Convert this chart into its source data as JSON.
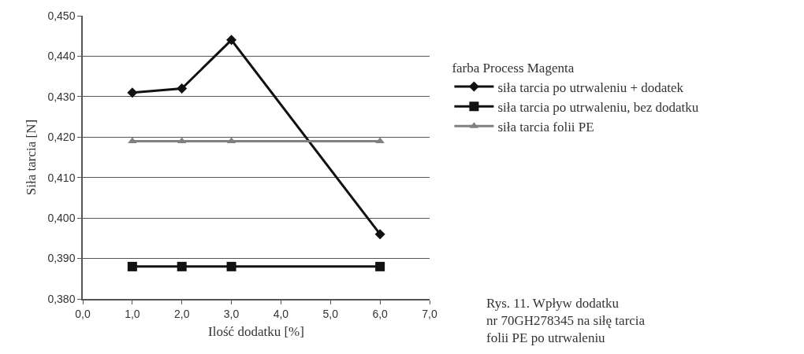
{
  "chart_data": {
    "type": "line",
    "xlabel": "Ilość dodatku [%]",
    "ylabel": "Siła tarcia [N]",
    "legend_title": "farba Process Magenta",
    "x": [
      1,
      2,
      3,
      6
    ],
    "series": [
      {
        "name": "siła tarcia po utrwaleniu + dodatek",
        "color": "#111111",
        "marker": "diamond",
        "values": [
          0.431,
          0.432,
          0.444,
          0.396
        ]
      },
      {
        "name": "siła tarcia po utrwaleniu, bez dodatku",
        "color": "#111111",
        "marker": "square",
        "values": [
          0.388,
          0.388,
          0.388,
          0.388
        ]
      },
      {
        "name": "siła tarcia folii PE",
        "color": "#808080",
        "marker": "triangle",
        "values": [
          0.419,
          0.419,
          0.419,
          0.419
        ]
      }
    ],
    "xlim": [
      0,
      7
    ],
    "xticks": [
      {
        "value": 0,
        "label": "0,0"
      },
      {
        "value": 1,
        "label": "1,0"
      },
      {
        "value": 2,
        "label": "2,0"
      },
      {
        "value": 3,
        "label": "3,0"
      },
      {
        "value": 4,
        "label": "4,0"
      },
      {
        "value": 5,
        "label": "5,0"
      },
      {
        "value": 6,
        "label": "6,0"
      },
      {
        "value": 7,
        "label": "7,0"
      }
    ],
    "ylim": [
      0.38,
      0.45
    ],
    "yticks": [
      {
        "value": 0.38,
        "label": "0,380"
      },
      {
        "value": 0.39,
        "label": "0,390"
      },
      {
        "value": 0.4,
        "label": "0,400"
      },
      {
        "value": 0.41,
        "label": "0,410"
      },
      {
        "value": 0.42,
        "label": "0,420"
      },
      {
        "value": 0.43,
        "label": "0,430"
      },
      {
        "value": 0.44,
        "label": "0,440"
      },
      {
        "value": 0.45,
        "label": "0,450"
      }
    ],
    "grid": "y",
    "legend": "right",
    "line_style": "solid",
    "annotations": [
      "Rys. 11. Wpływ dodatku nr 70GH278345 na siłę tarcia folii PE po utrwaleniu"
    ]
  }
}
